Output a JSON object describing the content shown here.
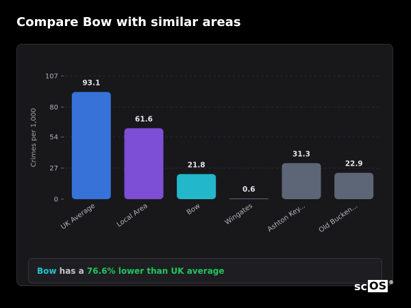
{
  "page": {
    "title": "Compare Bow with similar areas"
  },
  "chart_data": {
    "type": "bar",
    "ylabel": "Crimes per 1,000",
    "ylim": [
      0,
      107
    ],
    "yticks": [
      0,
      27,
      54,
      80,
      107
    ],
    "grid": true,
    "categories": [
      "UK Average",
      "Local Area",
      "Bow",
      "Wingates",
      "Ashton Key...",
      "Old Bucken..."
    ],
    "values": [
      93.1,
      61.6,
      21.8,
      0.6,
      31.3,
      22.9
    ],
    "value_labels": [
      "93.1",
      "61.6",
      "21.8",
      "0.6",
      "31.3",
      "22.9"
    ],
    "colors": [
      "#3672d8",
      "#7d4fd6",
      "#23b7cc",
      "#5d6677",
      "#5d6677",
      "#5d6677"
    ]
  },
  "summary": {
    "area": "Bow",
    "middle": " has a ",
    "difference": "76.6% lower than UK average"
  },
  "logo": {
    "prefix": "sc",
    "boxed": "OS",
    "mark": "®"
  }
}
